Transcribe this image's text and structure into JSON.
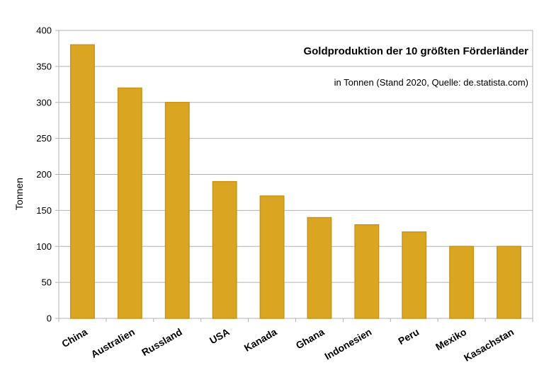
{
  "chart_data": {
    "type": "bar",
    "title": "Goldproduktion der 10 größten Förderländer",
    "subtitle": "in Tonnen (Stand 2020, Quelle: de.statista.com)",
    "xlabel": "",
    "ylabel": "Tonnen",
    "categories": [
      "China",
      "Australien",
      "Russland",
      "USA",
      "Kanada",
      "Ghana",
      "Indonesien",
      "Peru",
      "Mexiko",
      "Kasachstan"
    ],
    "values": [
      380,
      320,
      300,
      190,
      170,
      140,
      130,
      120,
      100,
      100
    ],
    "ylim": [
      0,
      400
    ],
    "yticks": [
      0,
      50,
      100,
      150,
      200,
      250,
      300,
      350,
      400
    ],
    "grid": true,
    "legend": "none",
    "colors": {
      "bar_fill": "#DAA520",
      "bar_stroke": "#C8951A",
      "grid": "#B3B3B3"
    }
  }
}
